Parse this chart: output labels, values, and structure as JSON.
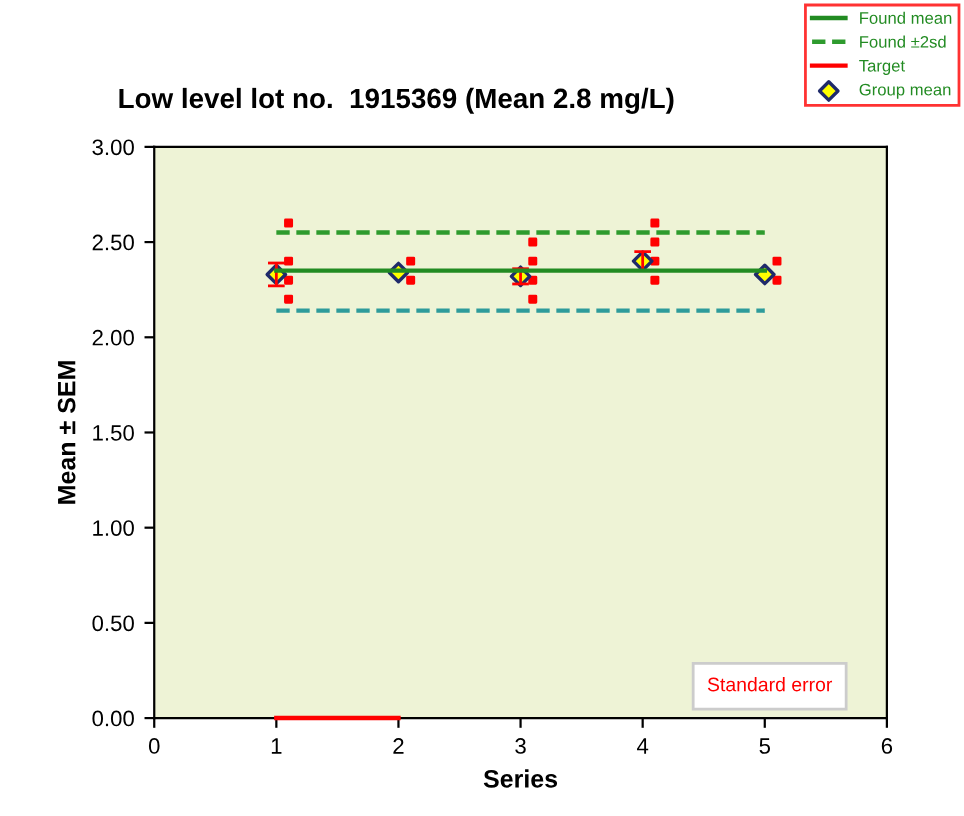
{
  "chart_data": {
    "type": "scatter",
    "title": "Low level lot no.  1915369 (Mean 2.8 mg/L)",
    "xlabel": "Series",
    "ylabel": "Mean ± SEM",
    "xlim": [
      0,
      6
    ],
    "xticks": [
      0,
      1,
      2,
      3,
      4,
      5,
      6
    ],
    "ylim": [
      0,
      3
    ],
    "yticks": [
      {
        "value": 0,
        "label": "0.00"
      },
      {
        "value": 0.5,
        "label": "0.50"
      },
      {
        "value": 1,
        "label": "1.00"
      },
      {
        "value": 1.5,
        "label": "1.50"
      },
      {
        "value": 2,
        "label": "2.00"
      },
      {
        "value": 2.5,
        "label": "2.50"
      },
      {
        "value": 3,
        "label": "3.00"
      }
    ],
    "grid": false,
    "legend": "top right",
    "annotations": [
      "Standard error"
    ],
    "series": [
      {
        "color": "#ff0000",
        "marker": "square",
        "x": [
          1.1,
          1.1,
          1.1,
          1.1,
          2.1,
          2.1,
          3.1,
          3.1,
          3.1,
          3.1,
          4.1,
          4.1,
          4.1,
          4.1,
          5.1,
          5.1
        ],
        "values": [
          2.6,
          2.4,
          2.3,
          2.2,
          2.4,
          2.3,
          2.5,
          2.4,
          2.3,
          2.2,
          2.6,
          2.5,
          2.4,
          2.3,
          2.4,
          2.3
        ]
      },
      {
        "type": "line",
        "name": "Found mean",
        "color": "#228b22",
        "line_style": "solid",
        "x": [
          1,
          5
        ],
        "values": [
          2.35,
          2.35
        ]
      },
      {
        "type": "line",
        "name": "Found ±2sd",
        "color": "#2e9b2e",
        "line_style": "dashed",
        "x": [
          1,
          5
        ],
        "values": [
          2.55,
          2.55
        ]
      },
      {
        "type": "line",
        "color": "#2e9b9b",
        "line_style": "dashed",
        "x": [
          1,
          5
        ],
        "values": [
          2.14,
          2.14
        ]
      },
      {
        "type": "line",
        "name": "Target",
        "color": "#ff0000",
        "line_style": "solid",
        "x": [
          1,
          2
        ],
        "values": [
          0,
          0
        ]
      },
      {
        "name": "Group mean",
        "color": "#ffff00",
        "marker": "diamond",
        "x": [
          1,
          2,
          3,
          4,
          5
        ],
        "values": [
          2.33,
          2.34,
          2.32,
          2.4,
          2.33
        ],
        "errors": [
          0.06,
          null,
          0.04,
          0.05,
          null
        ]
      }
    ]
  }
}
